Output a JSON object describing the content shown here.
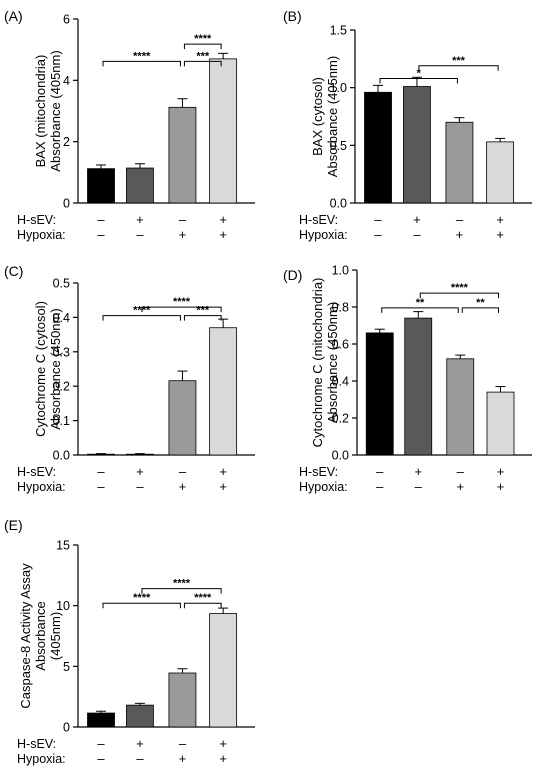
{
  "figure": {
    "background": "#ffffff"
  },
  "chart_data": [
    {
      "panel": "(A)",
      "type": "bar",
      "ylabel_lines": [
        "BAX (mitochondria)",
        "Absorbance (405nm)"
      ],
      "ylim": [
        0,
        6
      ],
      "yticks": [
        0,
        2,
        4,
        6
      ],
      "ytick_labels": [
        "0",
        "2",
        "4",
        "6"
      ],
      "values": [
        1.12,
        1.14,
        3.12,
        4.7
      ],
      "errors": [
        0.12,
        0.14,
        0.28,
        0.18
      ],
      "bar_colors": [
        "#000000",
        "#595959",
        "#9a9a9a",
        "#d9d9d9"
      ],
      "brackets": [
        {
          "from": 2,
          "to": 3,
          "y": 5.18,
          "label": "****"
        },
        {
          "from": 0,
          "to": 2,
          "y": 4.62,
          "label": "****"
        },
        {
          "from": 2,
          "to": 3,
          "y": 4.62,
          "label": "***"
        }
      ],
      "conditions": {
        "labels": [
          "H-sEV:",
          "Hypoxia:"
        ],
        "rows": [
          [
            "–",
            "+",
            "–",
            "+"
          ],
          [
            "–",
            "–",
            "+",
            "+"
          ]
        ]
      }
    },
    {
      "panel": "(B)",
      "type": "bar",
      "ylabel_lines": [
        "BAX (cytosol)",
        "Absorbance (405nm)"
      ],
      "ylim": [
        0,
        1.5
      ],
      "yticks": [
        0,
        0.5,
        1.0,
        1.5
      ],
      "ytick_labels": [
        "0.0",
        "0.5",
        "1.0",
        "1.5"
      ],
      "values": [
        0.96,
        1.01,
        0.7,
        0.53
      ],
      "errors": [
        0.06,
        0.08,
        0.04,
        0.03
      ],
      "bar_colors": [
        "#000000",
        "#595959",
        "#9a9a9a",
        "#d9d9d9"
      ],
      "brackets": [
        {
          "from": 0,
          "to": 2,
          "y": 1.08,
          "label": "*"
        },
        {
          "from": 1,
          "to": 3,
          "y": 1.19,
          "label": "***"
        }
      ],
      "conditions": {
        "labels": [
          "H-sEV:",
          "Hypoxia:"
        ],
        "rows": [
          [
            "–",
            "+",
            "–",
            "+"
          ],
          [
            "–",
            "–",
            "+",
            "+"
          ]
        ]
      }
    },
    {
      "panel": "(C)",
      "type": "bar",
      "ylabel_lines": [
        "Cytochrome C (cytosol)",
        "Absorbance (450nm)"
      ],
      "ylim": [
        0,
        0.5
      ],
      "yticks": [
        0,
        0.1,
        0.2,
        0.3,
        0.4,
        0.5
      ],
      "ytick_labels": [
        "0.0",
        "0.1",
        "0.2",
        "0.3",
        "0.4",
        "0.5"
      ],
      "values": [
        0.002,
        0.002,
        0.216,
        0.37
      ],
      "errors": [
        0.002,
        0.002,
        0.028,
        0.025
      ],
      "bar_colors": [
        "#000000",
        "#595959",
        "#9a9a9a",
        "#d9d9d9"
      ],
      "brackets": [
        {
          "from": 1,
          "to": 3,
          "y": 0.43,
          "label": "****"
        },
        {
          "from": 0,
          "to": 2,
          "y": 0.405,
          "label": "****"
        },
        {
          "from": 2,
          "to": 3,
          "y": 0.405,
          "label": "***"
        }
      ],
      "conditions": {
        "labels": [
          "H-sEV:",
          "Hypoxia:"
        ],
        "rows": [
          [
            "–",
            "+",
            "–",
            "+"
          ],
          [
            "–",
            "–",
            "+",
            "+"
          ]
        ]
      }
    },
    {
      "panel": "(D)",
      "type": "bar",
      "ylabel_lines": [
        "Cytochrome C (mitochondria)",
        "Absorbance (450nm)"
      ],
      "ylim": [
        0,
        1.0
      ],
      "yticks": [
        0,
        0.2,
        0.4,
        0.6,
        0.8,
        1.0
      ],
      "ytick_labels": [
        "0.0",
        "0.2",
        "0.4",
        "0.6",
        "0.8",
        "1.0"
      ],
      "values": [
        0.66,
        0.74,
        0.52,
        0.34
      ],
      "errors": [
        0.02,
        0.035,
        0.02,
        0.03
      ],
      "bar_colors": [
        "#000000",
        "#595959",
        "#9a9a9a",
        "#d9d9d9"
      ],
      "brackets": [
        {
          "from": 1,
          "to": 3,
          "y": 0.875,
          "label": "****"
        },
        {
          "from": 0,
          "to": 2,
          "y": 0.795,
          "label": "**"
        },
        {
          "from": 2,
          "to": 3,
          "y": 0.795,
          "label": "**"
        }
      ],
      "conditions": {
        "labels": [
          "H-sEV:",
          "Hypoxia:"
        ],
        "rows": [
          [
            "–",
            "+",
            "–",
            "+"
          ],
          [
            "–",
            "–",
            "+",
            "+"
          ]
        ]
      }
    },
    {
      "panel": "(E)",
      "type": "bar",
      "ylabel_lines": [
        "Caspase-8 Activity Assay",
        "Absorbance",
        "(405nm)"
      ],
      "ylim": [
        0,
        15
      ],
      "yticks": [
        0,
        5,
        10,
        15
      ],
      "ytick_labels": [
        "0",
        "5",
        "10",
        "15"
      ],
      "values": [
        1.15,
        1.8,
        4.45,
        9.35
      ],
      "errors": [
        0.15,
        0.15,
        0.35,
        0.45
      ],
      "bar_colors": [
        "#000000",
        "#595959",
        "#9a9a9a",
        "#d9d9d9"
      ],
      "brackets": [
        {
          "from": 1,
          "to": 3,
          "y": 11.4,
          "label": "****"
        },
        {
          "from": 0,
          "to": 2,
          "y": 10.2,
          "label": "****"
        },
        {
          "from": 2,
          "to": 3,
          "y": 10.2,
          "label": "****"
        }
      ],
      "conditions": {
        "labels": [
          "H-sEV:",
          "Hypoxia:"
        ],
        "rows": [
          [
            "–",
            "+",
            "–",
            "+"
          ],
          [
            "–",
            "–",
            "+",
            "+"
          ]
        ]
      }
    }
  ]
}
